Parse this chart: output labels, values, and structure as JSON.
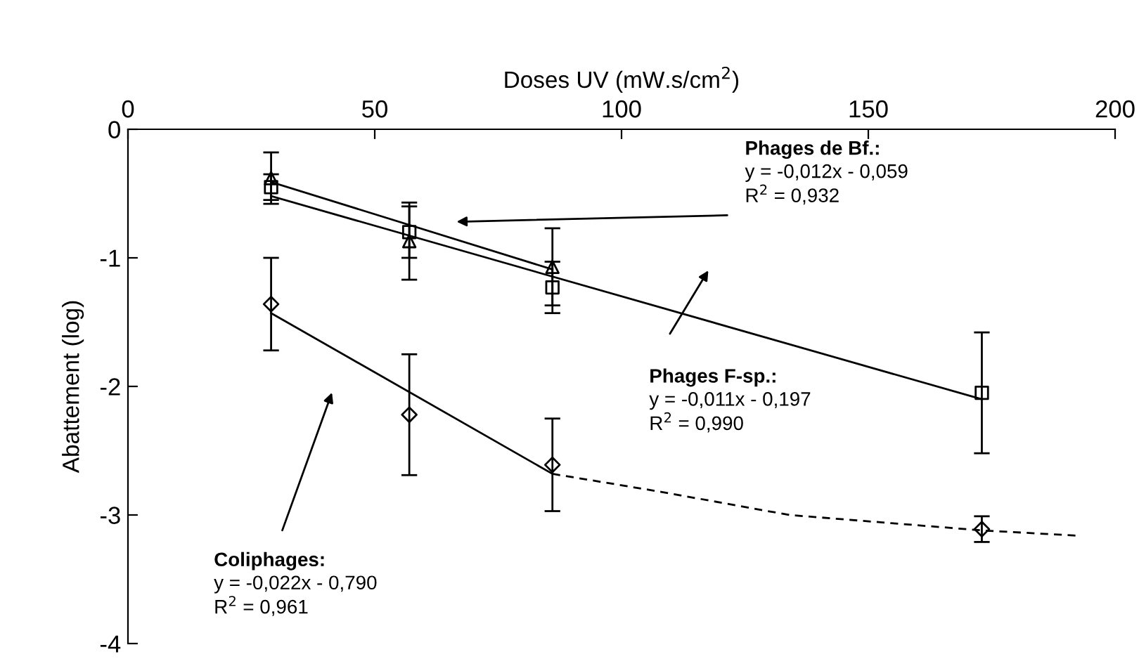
{
  "chart_data": {
    "type": "scatter",
    "xlabel": "Doses UV (mW.s/cm$^{2}$)",
    "ylabel": "Abattement (log)",
    "xlim": [
      0,
      200
    ],
    "xticks": [
      0,
      50,
      100,
      150,
      200
    ],
    "ylim": [
      -4,
      0
    ],
    "yticks": [
      0,
      -1,
      -2,
      -3,
      -4
    ],
    "grid": false,
    "legend": false,
    "series": [
      {
        "marker": "triangle",
        "color": "#000000",
        "x": [
          29,
          57,
          86
        ],
        "values": [
          -0.38,
          -0.87,
          -1.07
        ],
        "errors": [
          0.2,
          0.3,
          0.3
        ]
      },
      {
        "marker": "square",
        "color": "#000000",
        "x": [
          29,
          57,
          86,
          173
        ],
        "values": [
          -0.45,
          -0.8,
          -1.23,
          -2.05
        ],
        "errors": [
          0.1,
          0.2,
          0.2,
          0.47
        ]
      },
      {
        "marker": "diamond",
        "color": "#000000",
        "x": [
          29,
          57,
          86,
          173
        ],
        "values": [
          -1.36,
          -2.22,
          -2.61,
          -3.11
        ],
        "errors": [
          0.36,
          0.47,
          0.36,
          0.1
        ]
      },
      {
        "type": "line",
        "marker": "none",
        "line_style": "solid",
        "color": "#000000",
        "x": [
          29,
          86
        ],
        "values": [
          -0.41,
          -1.09
        ]
      },
      {
        "type": "line",
        "marker": "none",
        "line_style": "solid",
        "color": "#000000",
        "x": [
          29,
          173
        ],
        "values": [
          -0.52,
          -2.1
        ]
      },
      {
        "type": "line",
        "marker": "none",
        "line_style": "solid",
        "color": "#000000",
        "x": [
          29,
          86
        ],
        "values": [
          -1.43,
          -2.68
        ]
      },
      {
        "type": "line",
        "marker": "none",
        "line_style": "dashed",
        "color": "#000000",
        "x": [
          86,
          108,
          134,
          173,
          192
        ],
        "values": [
          -2.68,
          -2.82,
          -3.0,
          -3.12,
          -3.16
        ]
      }
    ],
    "annotations": [
      "Phages de Bf.:\ny = -0,012x - 0,059\nR$^{2}$ = 0,932",
      "Phages F-sp.:\ny = -0,011x - 0,197\nR$^{2}$ = 0,990",
      "Coliphages:\ny = -0,022x - 0,790\nR$^{2}$ = 0,961"
    ]
  }
}
